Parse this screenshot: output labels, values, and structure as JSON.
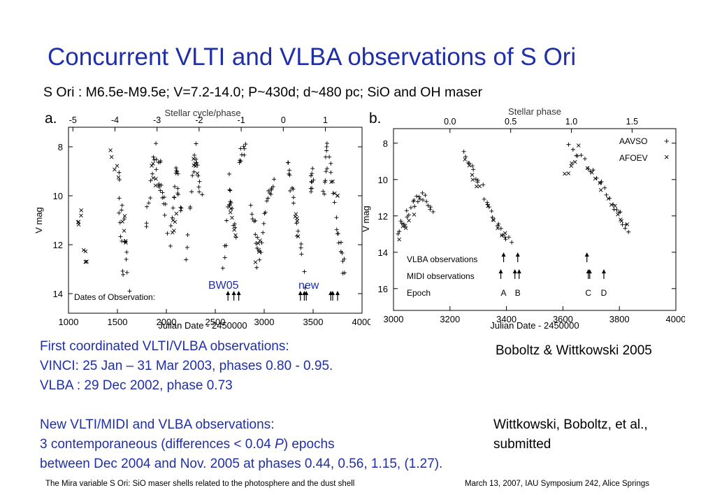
{
  "slide": {
    "title": "Concurrent VLTI and VLBA observations of S Ori",
    "subtitle": "S Ori : M6.5e-M9.5e; V=7.2-14.0; P~430d; d~480 pc; SiO and OH maser",
    "panel_a_letter": "a.",
    "panel_b_letter": "b.",
    "citation_1": "Boboltz & Wittkowski 2005",
    "citation_2_line1": "Wittkowski, Boboltz, et al.,",
    "citation_2_line2": "submitted",
    "first_obs": {
      "heading": "First coordinated VLTI/VLBA observations:",
      "line1": "VINCI:  25 Jan – 31 Mar 2003, phases 0.80 - 0.95.",
      "line2": "VLBA : 29 Dec 2002, phase 0.73"
    },
    "new_obs": {
      "heading": "New VLTI/MIDI and VLBA observations:",
      "line1_pre": "3 contemporaneous (differences < 0.04 ",
      "line1_italic": "P",
      "line1_post": ") epochs",
      "line2": "between Dec 2004 and Nov. 2005 at phases 0.44, 0.56, 1.15, (1.27)."
    },
    "footer_left": "The Mira variable S Ori: SiO maser shells related to the photosphere and the dust shell",
    "footer_right": "March 13, 2007, IAU Symposium 242, Alice Springs"
  },
  "chart_data": [
    {
      "type": "scatter",
      "xlabel": "Julian Date - 2450000",
      "ylabel": "V mag",
      "top_axis_label": "Stellar cycle/phase",
      "xlim": [
        1000,
        4000
      ],
      "ylim": [
        14.8,
        7.2
      ],
      "x_ticks": [
        1000,
        1500,
        2000,
        2500,
        3000,
        3500,
        4000
      ],
      "y_ticks": [
        8,
        10,
        12,
        14
      ],
      "top_ticks": [
        -5,
        -4,
        -3,
        -2,
        -1,
        0,
        1
      ],
      "top_tick_x": [
        1045,
        1475,
        1905,
        2335,
        2765,
        3195,
        3625
      ],
      "annotations": {
        "bw05": "BW05",
        "new": "new",
        "dates_label": "Dates of Observation:"
      },
      "obs_arrows": [
        2630,
        2690,
        2740,
        3370,
        3410,
        3430,
        3680,
        3700,
        3750
      ],
      "annotation_colors": {
        "bw05": "#1f2fa8",
        "new": "#1f2fa8"
      },
      "series": [
        {
          "marker": "+",
          "segments": [
            [
              1500,
              8.8,
              1570,
              13.5
            ],
            [
              1540,
              10.2,
              1620,
              13.8
            ],
            [
              1780,
              11.5,
              1880,
              8.0
            ],
            [
              1880,
              8.0,
              1960,
              10.5
            ],
            [
              1930,
              8.5,
              2010,
              11.6
            ],
            [
              2040,
              12.0,
              2100,
              8.6
            ],
            [
              2100,
              8.6,
              2150,
              11.0
            ],
            [
              2200,
              12.8,
              2300,
              8.0
            ],
            [
              2290,
              8.0,
              2360,
              10.2
            ],
            [
              2580,
              13.3,
              2660,
              9.0
            ],
            [
              2640,
              9.6,
              2720,
              11.9
            ],
            [
              2750,
              8.5,
              2800,
              8.0
            ],
            [
              2870,
              10.2,
              2940,
              12.6
            ],
            [
              2930,
              13.1,
              3040,
              10.0
            ],
            [
              3040,
              10.0,
              3100,
              9.4
            ],
            [
              3230,
              8.6,
              3300,
              10.2
            ],
            [
              3300,
              10.2,
              3420,
              13.7
            ],
            [
              3470,
              9.8,
              3500,
              9.0
            ],
            [
              3600,
              10.0,
              3650,
              8.0
            ],
            [
              3650,
              8.0,
              3770,
              11.8
            ],
            [
              3760,
              11.5,
              3820,
              13.2
            ]
          ],
          "points_per_segment": 9
        },
        {
          "marker": "x",
          "segments": [
            [
              1100,
              11.0,
              1130,
              10.8
            ],
            [
              1160,
              12.4,
              1190,
              12.6
            ],
            [
              1430,
              8.3,
              1520,
              9.2
            ],
            [
              1560,
              10.8,
              1600,
              12.1
            ],
            [
              1840,
              8.6,
              1900,
              9.5
            ],
            [
              2060,
              11.7,
              2100,
              10.6
            ],
            [
              2270,
              8.5,
              2310,
              9.2
            ],
            [
              2650,
              10.5,
              2700,
              11.4
            ],
            [
              2920,
              12.5,
              2960,
              11.8
            ],
            [
              3310,
              10.6,
              3360,
              11.5
            ],
            [
              3690,
              9.2,
              3760,
              10.1
            ]
          ],
          "points_per_segment": 5
        }
      ]
    },
    {
      "type": "scatter",
      "xlabel": "Julian Date - 2450000",
      "ylabel": "V mag",
      "top_axis_label": "Stellar phase",
      "xlim": [
        3000,
        4000
      ],
      "ylim": [
        17.2,
        7.2
      ],
      "x_ticks": [
        3000,
        3200,
        3400,
        3600,
        3800,
        4000
      ],
      "y_ticks": [
        8,
        10,
        12,
        14,
        16
      ],
      "top_ticks": [
        "0.0",
        "0.5",
        "1.0",
        "1.5"
      ],
      "top_tick_x": [
        3200,
        3415,
        3630,
        3845
      ],
      "legend": [
        {
          "marker": "+",
          "label": "AAVSO"
        },
        {
          "marker": "x",
          "label": "AFOEV"
        }
      ],
      "legend_position": "top-right",
      "rows": [
        {
          "label": "VLBA observations",
          "arrows": [
            3390,
            3440,
            3685
          ]
        },
        {
          "label": "MIDI observations",
          "arrows": [
            3380,
            3430,
            3445,
            3690,
            3695,
            3745
          ]
        },
        {
          "label": "Epoch",
          "letters": [
            "A",
            "B",
            "C",
            "D"
          ],
          "letter_x": [
            3390,
            3440,
            3690,
            3745
          ]
        }
      ],
      "series": [
        {
          "name": "AAVSO",
          "marker": "+",
          "segments": [
            [
              3010,
              13.0,
              3060,
              11.6
            ],
            [
              3060,
              11.6,
              3100,
              10.8
            ],
            [
              3100,
              10.8,
              3140,
              11.8
            ],
            [
              3240,
              8.5,
              3300,
              10.0
            ],
            [
              3300,
              10.0,
              3360,
              12.3
            ],
            [
              3360,
              12.3,
              3420,
              13.4
            ],
            [
              3620,
              8.2,
              3700,
              9.5
            ],
            [
              3700,
              9.5,
              3780,
              11.3
            ],
            [
              3780,
              11.3,
              3840,
              13.0
            ]
          ],
          "points_per_segment": 8
        },
        {
          "name": "AFOEV",
          "marker": "x",
          "segments": [
            [
              3020,
              13.1,
              3070,
              11.9
            ],
            [
              3250,
              9.0,
              3310,
              10.6
            ],
            [
              3330,
              11.5,
              3400,
              13.2
            ],
            [
              3600,
              10.0,
              3660,
              8.3
            ],
            [
              3680,
              9.2,
              3760,
              11.0
            ],
            [
              3770,
              11.4,
              3830,
              12.6
            ]
          ],
          "points_per_segment": 6
        }
      ]
    }
  ]
}
